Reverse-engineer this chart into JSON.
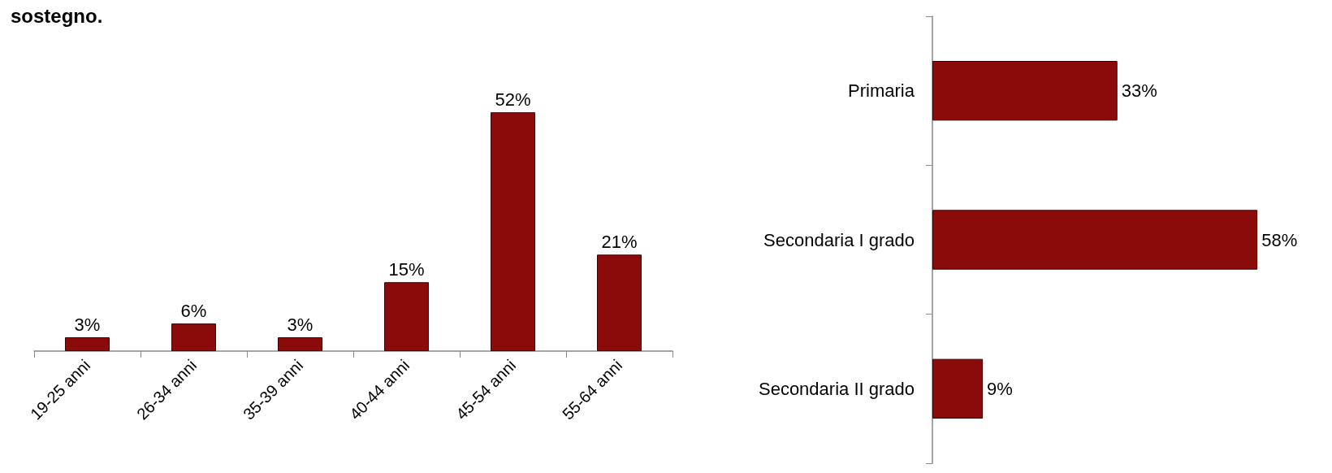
{
  "chart_data": [
    {
      "type": "bar",
      "title": "sostegno.",
      "categories": [
        "19-25 anni",
        "26-34 anni",
        "35-39 anni",
        "40-44 anni",
        "45-54 anni",
        "55-64 anni"
      ],
      "values": [
        3,
        6,
        3,
        15,
        52,
        21
      ],
      "value_labels": [
        "3%",
        "6%",
        "3%",
        "15%",
        "52%",
        "21%"
      ],
      "color": "#8b0a0a"
    },
    {
      "type": "bar",
      "orientation": "horizontal",
      "categories": [
        "Primaria",
        "Secondaria I grado",
        "Secondaria II grado"
      ],
      "values": [
        33,
        58,
        9
      ],
      "value_labels": [
        "33%",
        "58%",
        "9%"
      ],
      "color": "#8b0a0a"
    }
  ]
}
